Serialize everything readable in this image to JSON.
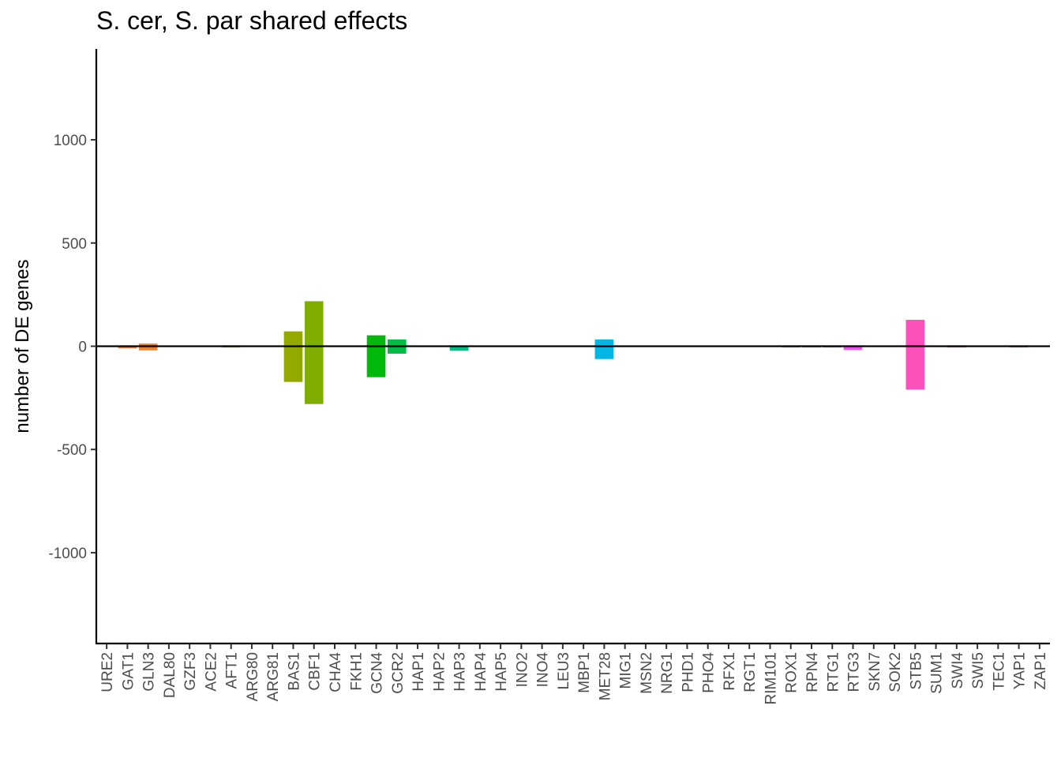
{
  "chart_data": {
    "type": "bar",
    "title": "S. cer, S. par shared effects",
    "xlabel": "",
    "ylabel": "number of DE genes",
    "ylim": [
      -1440,
      1440
    ],
    "yticks": [
      -1000,
      -500,
      0,
      500,
      1000
    ],
    "ytick_labels": [
      "-1000",
      "-500",
      "0",
      "500",
      "1000"
    ],
    "grid": false,
    "legend": "none",
    "zero_line": true,
    "categories": [
      "URE2",
      "GAT1",
      "GLN3",
      "DAL80",
      "GZF3",
      "ACE2",
      "AFT1",
      "ARG80",
      "ARG81",
      "BAS1",
      "CBF1",
      "CHA4",
      "FKH1",
      "GCN4",
      "GCR2",
      "HAP1",
      "HAP2",
      "HAP3",
      "HAP4",
      "HAP5",
      "INO2",
      "INO4",
      "LEU3",
      "MBP1",
      "MET28",
      "MIG1",
      "MSN2",
      "NRG1",
      "PHD1",
      "PHO4",
      "RFX1",
      "RGT1",
      "RIM101",
      "ROX1",
      "RPN4",
      "RTG1",
      "RTG3",
      "SKN7",
      "SOK2",
      "STB5",
      "SUM1",
      "SWI4",
      "SWI5",
      "TEC1",
      "YAP1",
      "ZAP1"
    ],
    "series": [
      {
        "direction": "up",
        "values": [
          0,
          0,
          13,
          0,
          0,
          0,
          0,
          0,
          0,
          72,
          218,
          0,
          0,
          53,
          33,
          0,
          0,
          0,
          0,
          0,
          0,
          0,
          0,
          0,
          33,
          0,
          0,
          0,
          0,
          0,
          0,
          0,
          0,
          0,
          0,
          0,
          0,
          0,
          0,
          128,
          0,
          0,
          0,
          0,
          0,
          0
        ]
      },
      {
        "direction": "down",
        "values": [
          0,
          -10,
          -20,
          0,
          0,
          0,
          -4,
          0,
          0,
          -173,
          -280,
          0,
          0,
          -150,
          -36,
          0,
          0,
          -22,
          0,
          0,
          0,
          0,
          0,
          0,
          -62,
          0,
          0,
          0,
          0,
          0,
          0,
          0,
          0,
          -4,
          -4,
          -4,
          -18,
          0,
          0,
          -210,
          0,
          -4,
          0,
          0,
          -4,
          0
        ]
      }
    ],
    "colors": [
      "#F8766D",
      "#F27D52",
      "#EA8331",
      "#E08B00",
      "#D69100",
      "#CB9600",
      "#BF9B00",
      "#B29F00",
      "#A3A500",
      "#93A900",
      "#7FAE00",
      "#67B300",
      "#47B600",
      "#00B90B",
      "#00BB45",
      "#00BD5F",
      "#00BF73",
      "#00C085",
      "#00C195",
      "#00C1A4",
      "#00C0B2",
      "#00BFC0",
      "#00BDCC",
      "#00BAD8",
      "#00B6E3",
      "#00B1ED",
      "#00ABF6",
      "#00A5FD",
      "#009DFF",
      "#4F94FF",
      "#7A8AFF",
      "#977FFF",
      "#AD74FF",
      "#BF6BFF",
      "#CF63FB",
      "#DC5CF3",
      "#E857E8",
      "#F053DB",
      "#F751CC",
      "#FC51BB",
      "#FF53AA",
      "#FF5898",
      "#FF5F86",
      "#FD6775",
      "#F8766D",
      "#F37A63"
    ]
  }
}
